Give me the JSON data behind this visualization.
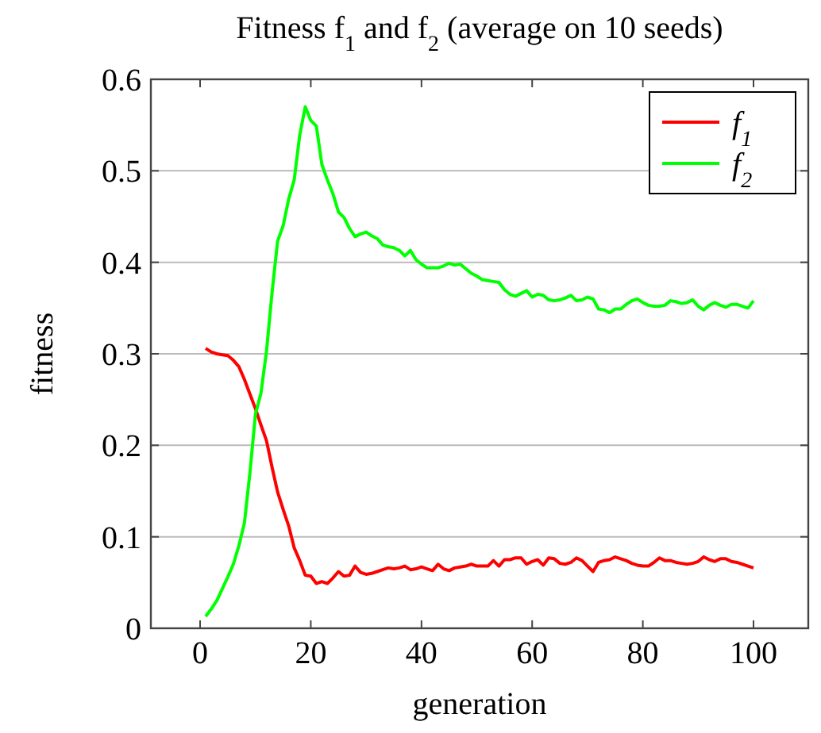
{
  "chart_data": {
    "type": "line",
    "title": "Fitness f$_{1}$ and f$_{2}$ (average on 10 seeds)",
    "xlabel": "generation",
    "ylabel": "fitness",
    "x": [
      1,
      2,
      3,
      4,
      5,
      6,
      7,
      8,
      9,
      10,
      11,
      12,
      13,
      14,
      15,
      16,
      17,
      18,
      19,
      20,
      21,
      22,
      23,
      24,
      25,
      26,
      27,
      28,
      29,
      30,
      31,
      32,
      33,
      34,
      35,
      36,
      37,
      38,
      39,
      40,
      41,
      42,
      43,
      44,
      45,
      46,
      47,
      48,
      49,
      50,
      51,
      52,
      53,
      54,
      55,
      56,
      57,
      58,
      59,
      60,
      61,
      62,
      63,
      64,
      65,
      66,
      67,
      68,
      69,
      70,
      71,
      72,
      73,
      74,
      75,
      76,
      77,
      78,
      79,
      80,
      81,
      82,
      83,
      84,
      85,
      86,
      87,
      88,
      89,
      90,
      91,
      92,
      93,
      94,
      95,
      96,
      97,
      98,
      99,
      100
    ],
    "series": [
      {
        "name": "f$_{1}$",
        "color": "#ff0000",
        "values": [
          0.306,
          0.302,
          0.3,
          0.299,
          0.298,
          0.293,
          0.286,
          0.272,
          0.256,
          0.24,
          0.222,
          0.205,
          0.176,
          0.149,
          0.13,
          0.112,
          0.088,
          0.074,
          0.058,
          0.057,
          0.049,
          0.051,
          0.049,
          0.055,
          0.062,
          0.057,
          0.058,
          0.068,
          0.061,
          0.059,
          0.06,
          0.062,
          0.064,
          0.066,
          0.065,
          0.066,
          0.068,
          0.064,
          0.065,
          0.067,
          0.065,
          0.063,
          0.07,
          0.065,
          0.063,
          0.066,
          0.067,
          0.068,
          0.07,
          0.068,
          0.068,
          0.068,
          0.074,
          0.068,
          0.075,
          0.075,
          0.077,
          0.077,
          0.07,
          0.073,
          0.075,
          0.069,
          0.077,
          0.076,
          0.071,
          0.07,
          0.072,
          0.077,
          0.074,
          0.068,
          0.062,
          0.072,
          0.074,
          0.075,
          0.078,
          0.076,
          0.074,
          0.071,
          0.069,
          0.068,
          0.068,
          0.072,
          0.077,
          0.074,
          0.074,
          0.072,
          0.071,
          0.07,
          0.071,
          0.073,
          0.078,
          0.075,
          0.073,
          0.076,
          0.076,
          0.073,
          0.072,
          0.07,
          0.068,
          0.066
        ]
      },
      {
        "name": "f$_{2}$",
        "color": "#00ff00",
        "values": [
          0.013,
          0.021,
          0.03,
          0.043,
          0.056,
          0.07,
          0.09,
          0.115,
          0.17,
          0.234,
          0.257,
          0.303,
          0.367,
          0.423,
          0.44,
          0.469,
          0.49,
          0.539,
          0.57,
          0.555,
          0.549,
          0.507,
          0.49,
          0.475,
          0.455,
          0.449,
          0.437,
          0.428,
          0.431,
          0.433,
          0.429,
          0.426,
          0.419,
          0.417,
          0.416,
          0.413,
          0.407,
          0.413,
          0.403,
          0.398,
          0.394,
          0.394,
          0.394,
          0.396,
          0.399,
          0.397,
          0.398,
          0.393,
          0.388,
          0.385,
          0.381,
          0.38,
          0.379,
          0.378,
          0.37,
          0.365,
          0.363,
          0.366,
          0.369,
          0.362,
          0.365,
          0.364,
          0.359,
          0.358,
          0.359,
          0.361,
          0.364,
          0.358,
          0.359,
          0.362,
          0.36,
          0.349,
          0.348,
          0.345,
          0.349,
          0.349,
          0.354,
          0.358,
          0.36,
          0.356,
          0.353,
          0.352,
          0.352,
          0.353,
          0.358,
          0.357,
          0.355,
          0.356,
          0.359,
          0.352,
          0.348,
          0.353,
          0.356,
          0.353,
          0.351,
          0.354,
          0.354,
          0.352,
          0.35,
          0.358
        ]
      }
    ],
    "xlim": [
      -8.9,
      109.9
    ],
    "ylim": [
      0,
      0.6
    ],
    "xticks": [
      0,
      20,
      40,
      60,
      80,
      100
    ],
    "yticks": [
      0,
      0.1,
      0.2,
      0.3,
      0.4,
      0.5,
      0.6
    ],
    "grid": "y",
    "legend": "top right",
    "marker": "none",
    "line_style": "solid"
  }
}
